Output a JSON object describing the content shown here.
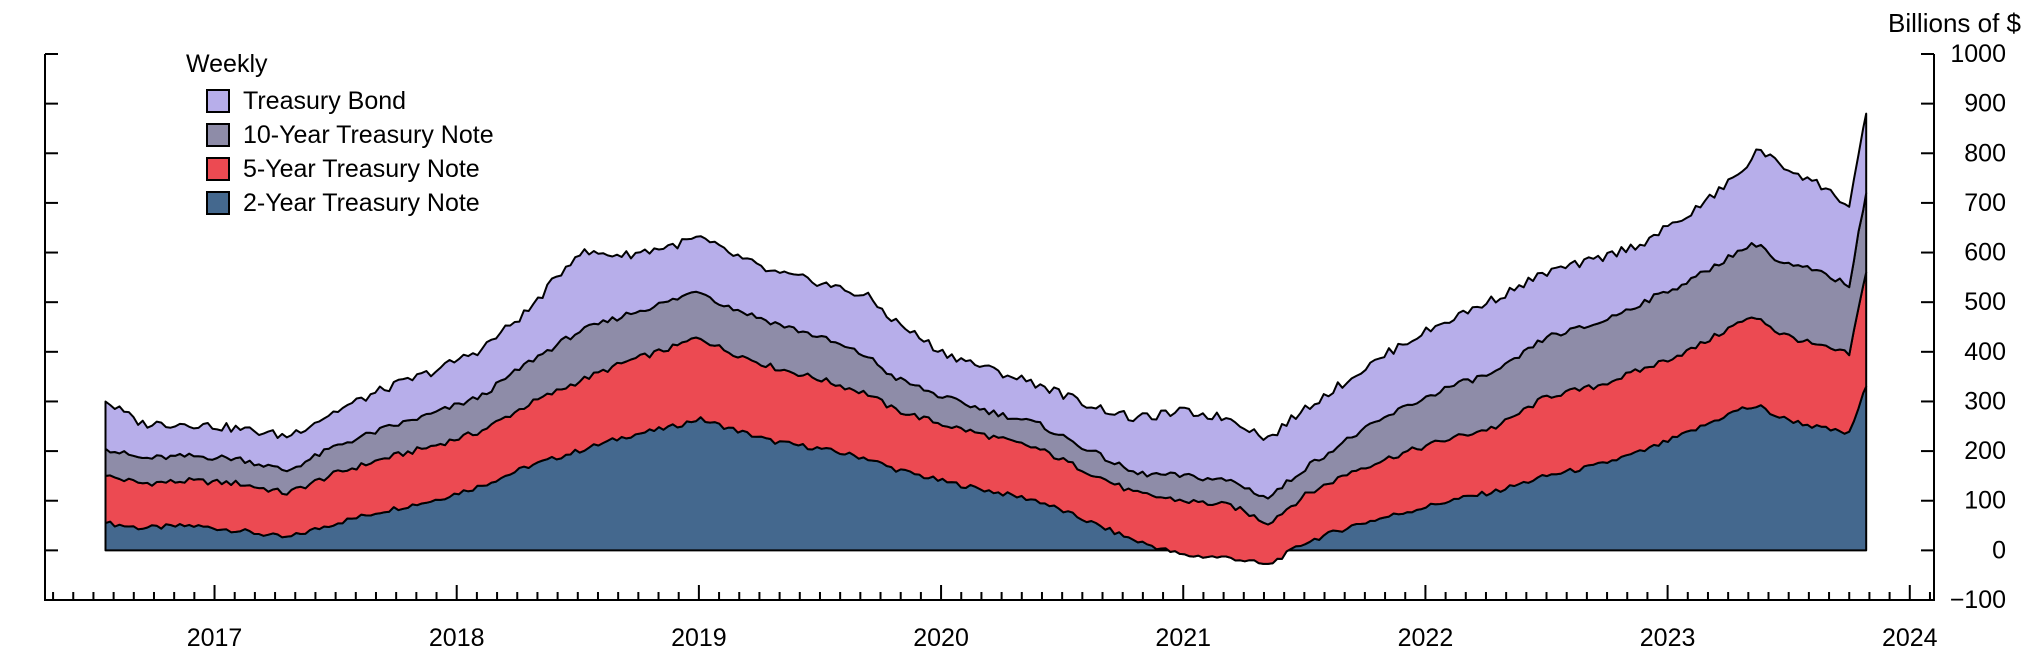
{
  "legend": {
    "title": "Weekly",
    "items": [
      {
        "label": "Treasury Bond",
        "color": "#b7aeea"
      },
      {
        "label": "10-Year Treasury Note",
        "color": "#8e8ca8"
      },
      {
        "label": "5-Year Treasury Note",
        "color": "#ec4a52"
      },
      {
        "label": "2-Year Treasury Note",
        "color": "#44688e"
      }
    ]
  },
  "chart_data": {
    "type": "area",
    "stacked": true,
    "frequency_label": "Weekly",
    "ylabel_right": "Billions of $",
    "xlim": [
      2016.3,
      2024.1
    ],
    "ylim": [
      -100,
      1000
    ],
    "x_ticks": [
      2017,
      2018,
      2019,
      2020,
      2021,
      2022,
      2023,
      2024
    ],
    "y_ticks": [
      -100,
      0,
      100,
      200,
      300,
      400,
      500,
      600,
      700,
      800,
      900,
      1000
    ],
    "x_keyframes": [
      2016.55,
      2016.7,
      2016.9,
      2017.1,
      2017.3,
      2017.5,
      2017.7,
      2017.9,
      2018.1,
      2018.3,
      2018.5,
      2018.7,
      2018.9,
      2019.0,
      2019.1,
      2019.3,
      2019.5,
      2019.7,
      2019.8,
      2020.0,
      2020.2,
      2020.4,
      2020.6,
      2020.8,
      2021.0,
      2021.2,
      2021.35,
      2021.5,
      2021.7,
      2021.9,
      2022.1,
      2022.3,
      2022.5,
      2022.7,
      2022.9,
      2023.1,
      2023.3,
      2023.38,
      2023.45,
      2023.6,
      2023.75,
      2023.82
    ],
    "series": [
      {
        "name": "2-Year Treasury Note",
        "color": "#44688e",
        "values": [
          55,
          45,
          50,
          40,
          25,
          55,
          80,
          100,
          130,
          170,
          200,
          230,
          250,
          265,
          250,
          220,
          205,
          185,
          165,
          140,
          120,
          100,
          60,
          20,
          -10,
          -15,
          -30,
          15,
          50,
          75,
          100,
          120,
          150,
          170,
          200,
          240,
          285,
          290,
          270,
          250,
          235,
          330
        ]
      },
      {
        "name": "5-Year Treasury Note",
        "color": "#ec4a52",
        "values": [
          95,
          90,
          90,
          95,
          90,
          100,
          105,
          110,
          110,
          125,
          140,
          150,
          160,
          165,
          155,
          150,
          140,
          130,
          120,
          115,
          110,
          105,
          100,
          95,
          110,
          105,
          85,
          95,
          110,
          120,
          125,
          130,
          160,
          160,
          165,
          165,
          175,
          180,
          170,
          165,
          160,
          230
        ]
      },
      {
        "name": "10-Year Treasury Note",
        "color": "#8e8ca8",
        "values": [
          55,
          50,
          50,
          50,
          45,
          55,
          60,
          65,
          70,
          85,
          100,
          95,
          95,
          95,
          90,
          90,
          85,
          75,
          65,
          55,
          50,
          50,
          45,
          40,
          50,
          50,
          50,
          55,
          70,
          90,
          105,
          110,
          120,
          125,
          135,
          140,
          145,
          150,
          140,
          150,
          140,
          160
        ]
      },
      {
        "name": "Treasury Bond",
        "color": "#b7aeea",
        "values": [
          95,
          70,
          65,
          60,
          70,
          70,
          80,
          85,
          95,
          105,
          160,
          120,
          110,
          105,
          110,
          100,
          110,
          120,
          115,
          90,
          85,
          80,
          90,
          110,
          130,
          125,
          120,
          120,
          120,
          130,
          135,
          150,
          130,
          130,
          120,
          135,
          155,
          190,
          200,
          180,
          160,
          160
        ]
      }
    ]
  },
  "render": {
    "background": "#ffffff",
    "axis_color": "#000000",
    "outline_color": "#000000",
    "sample_step": 0.0192,
    "noise_amplitudes": [
      5,
      6,
      6,
      9
    ]
  }
}
